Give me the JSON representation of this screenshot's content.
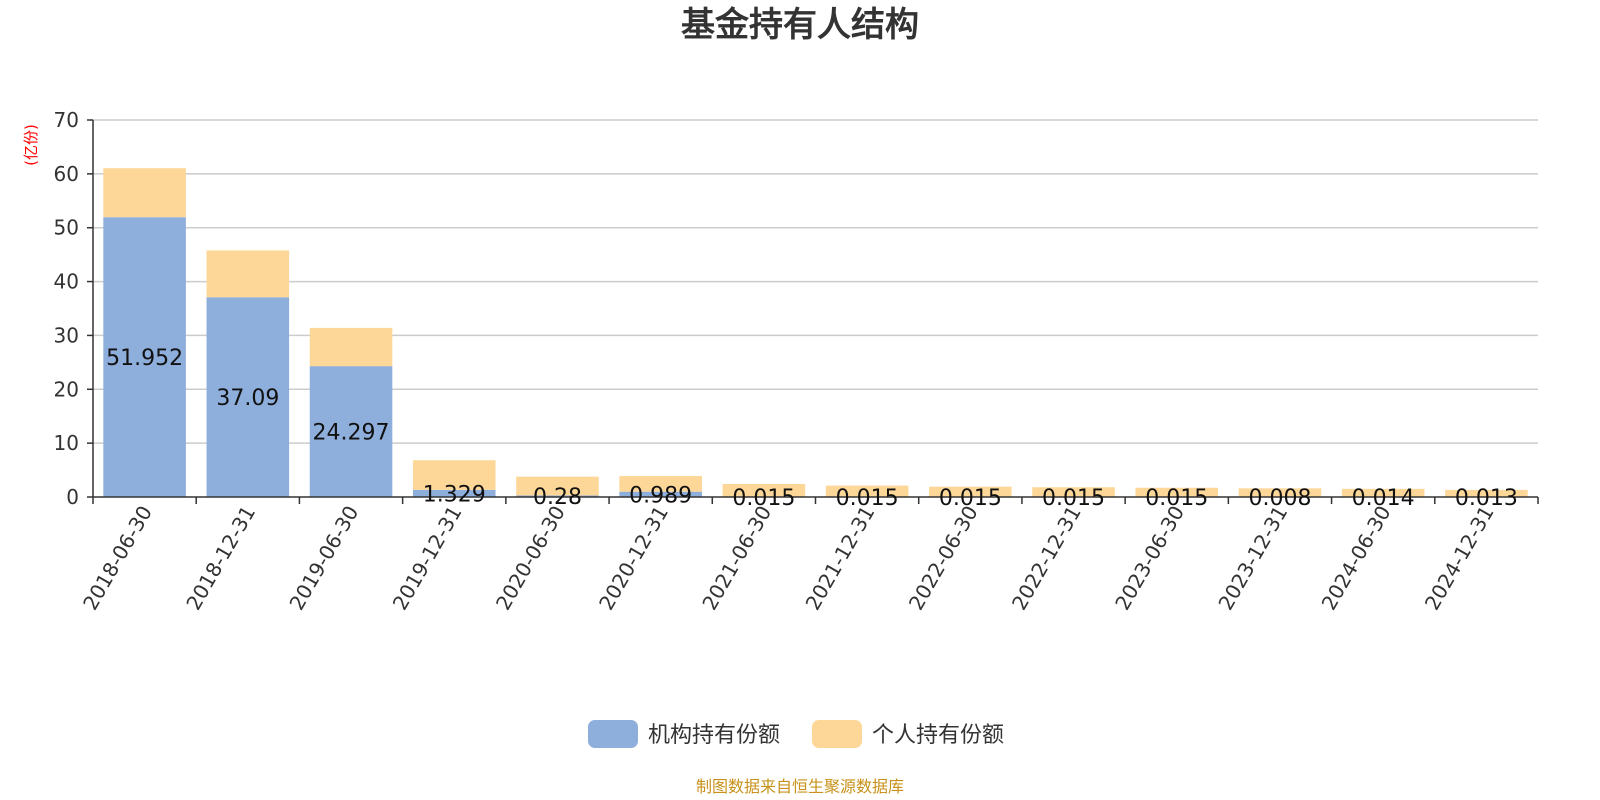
{
  "chart_data": {
    "type": "bar",
    "stacked": true,
    "title": "基金持有人结构",
    "ylabel": "(亿份)",
    "ylim": [
      0,
      70
    ],
    "yticks": [
      0,
      10,
      20,
      30,
      40,
      50,
      60,
      70
    ],
    "grid": true,
    "legend_position": "bottom",
    "categories": [
      "2018-06-30",
      "2018-12-31",
      "2019-06-30",
      "2019-12-31",
      "2020-06-30",
      "2020-12-31",
      "2021-06-30",
      "2021-12-31",
      "2022-06-30",
      "2022-12-31",
      "2023-06-30",
      "2023-12-31",
      "2024-06-30",
      "2024-12-31"
    ],
    "series": [
      {
        "name": "机构持有份额",
        "color": "#8eaedb",
        "values": [
          51.952,
          37.09,
          24.297,
          1.329,
          0.28,
          0.989,
          0.015,
          0.015,
          0.015,
          0.015,
          0.015,
          0.008,
          0.014,
          0.013
        ],
        "labels": [
          "51.952",
          "37.09",
          "24.297",
          "1.329",
          "0.28",
          "0.989",
          "0.015",
          "0.015",
          "0.015",
          "0.015",
          "0.015",
          "0.008",
          "0.014",
          "0.013"
        ]
      },
      {
        "name": "个人持有份额",
        "color": "#fdd797",
        "values": [
          9.1,
          8.7,
          7.1,
          5.5,
          3.5,
          2.9,
          2.4,
          2.1,
          1.9,
          1.8,
          1.7,
          1.6,
          1.5,
          1.3
        ]
      }
    ],
    "source": "制图数据来自恒生聚源数据库",
    "colors": {
      "title": "#333333",
      "unit": "#ff0000",
      "source": "#c8921a",
      "grid": "#cccccc",
      "axis": "#333333"
    }
  }
}
